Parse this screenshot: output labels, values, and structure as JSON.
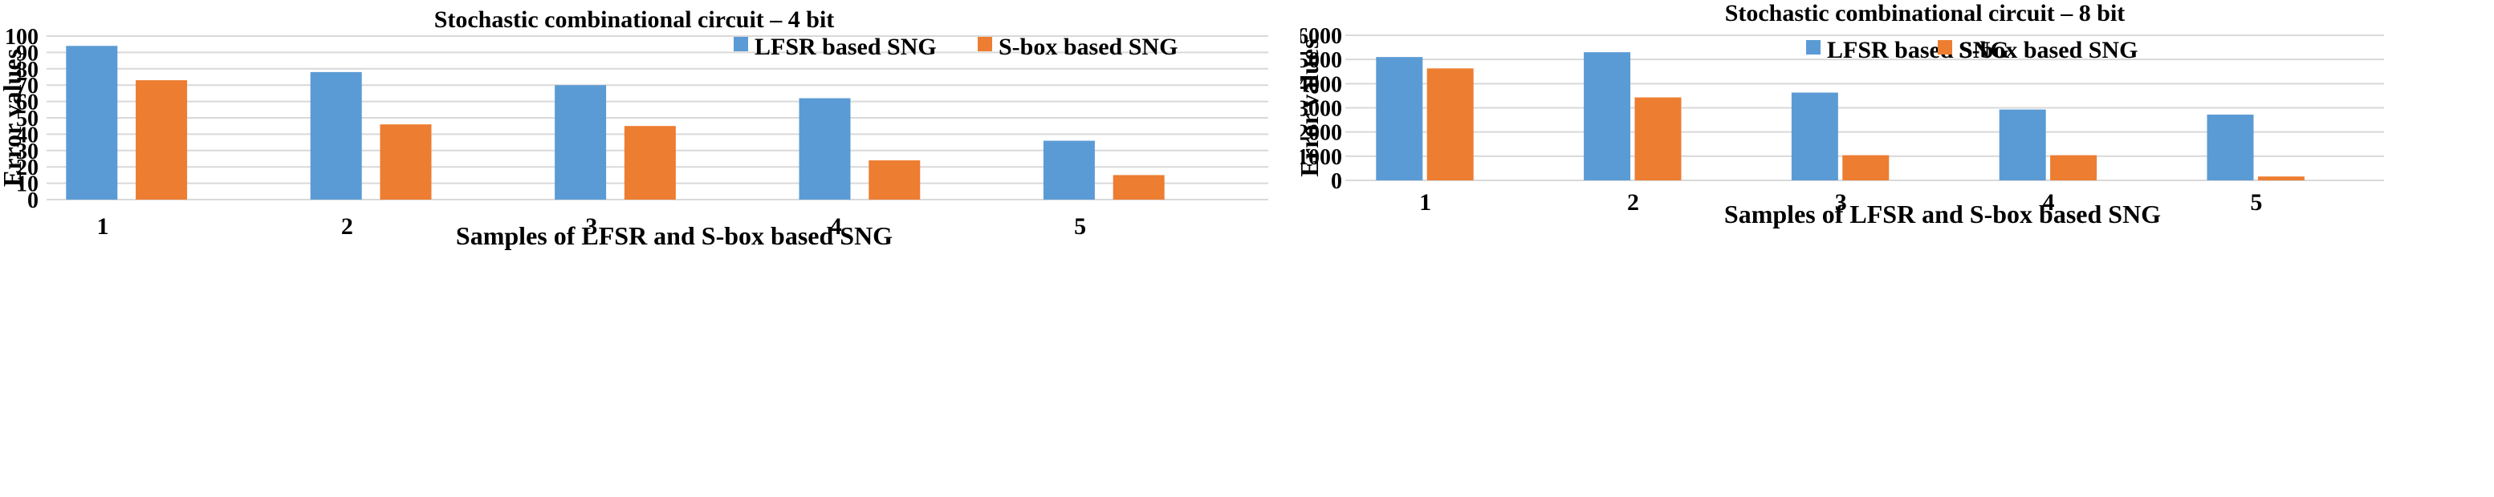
{
  "chart_data": [
    {
      "type": "bar",
      "title": "Stochastic combinational circuit – 4 bit",
      "xlabel": "Samples of LFSR and S-box based SNG",
      "ylabel": "Error values",
      "categories": [
        "1",
        "2",
        "3",
        "4",
        "5"
      ],
      "series": [
        {
          "name": "LFSR based SNG",
          "color": "#5B9BD5",
          "values": [
            94,
            78,
            70,
            62,
            36
          ]
        },
        {
          "name": "S-box based SNG",
          "color": "#ED7D31",
          "values": [
            73,
            46,
            45,
            24,
            15
          ]
        }
      ],
      "ylim": [
        0,
        100
      ],
      "yticks": [
        0,
        10,
        20,
        30,
        40,
        50,
        60,
        70,
        80,
        90,
        100
      ],
      "grid": true,
      "legend": "top-right"
    },
    {
      "type": "bar",
      "title": "Stochastic combinational circuit – 8 bit",
      "xlabel": "Samples of LFSR and S-box based SNG",
      "ylabel": "Error values",
      "categories": [
        "1",
        "2",
        "3",
        "4",
        "5"
      ],
      "series": [
        {
          "name": "LFSR based SNG",
          "color": "#5B9BD5",
          "values": [
            5100,
            5300,
            3630,
            2930,
            2720
          ]
        },
        {
          "name": "S-box based SNG",
          "color": "#ED7D31",
          "values": [
            4630,
            3430,
            1040,
            1040,
            160
          ]
        }
      ],
      "ylim": [
        0,
        6000
      ],
      "yticks": [
        0,
        1000,
        2000,
        3000,
        4000,
        5000,
        6000
      ],
      "grid": true,
      "legend": "top-right"
    }
  ]
}
